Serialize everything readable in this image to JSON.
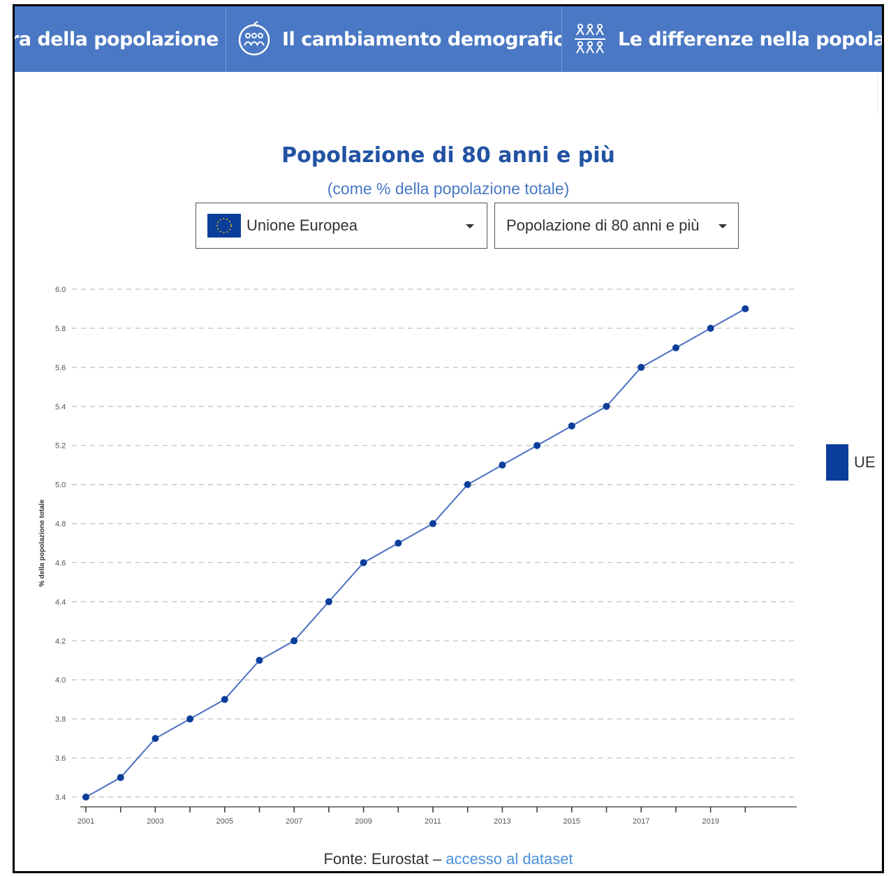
{
  "nav": {
    "items": [
      {
        "label": "ura della popolazione",
        "icon": ""
      },
      {
        "label": "Il cambiamento demografico",
        "icon": "people-cycle-icon"
      },
      {
        "label": "Le differenze nella popolazione",
        "icon": "people-group-icon"
      }
    ]
  },
  "controls": {
    "country": {
      "label": "Unione Europea",
      "icon": "eu-flag-icon"
    },
    "indicator": {
      "label": "Popolazione di 80 anni e più"
    }
  },
  "footer": {
    "source_text": "Fonte: Eurostat –",
    "link_text": "accesso al dataset"
  },
  "colors": {
    "nav_bg": "#4a78c4",
    "series": "#0b3d9b",
    "title": "#2253a3"
  },
  "chart_data": {
    "type": "line",
    "title": "Popolazione di 80 anni e più",
    "subtitle": "(come % della popolazione totale)",
    "ylabel": "% della popolazione totale",
    "xlabel": "",
    "ylim": [
      3.4,
      6.0
    ],
    "yticks": [
      "3.4",
      "3.6",
      "3.8",
      "4.0",
      "4.2",
      "4.4",
      "4.6",
      "4.8",
      "5.0",
      "5.2",
      "5.4",
      "5.6",
      "5.8",
      "6.0"
    ],
    "xticks": [
      2001,
      2003,
      2005,
      2007,
      2009,
      2011,
      2013,
      2015,
      2017,
      2019
    ],
    "grid": true,
    "legend_placement": "right",
    "x": [
      2001,
      2002,
      2003,
      2004,
      2005,
      2006,
      2007,
      2008,
      2009,
      2010,
      2011,
      2012,
      2013,
      2014,
      2015,
      2016,
      2017,
      2018,
      2019,
      2020
    ],
    "series": [
      {
        "name": "UE",
        "color": "#0b3d9b",
        "values": [
          3.4,
          3.5,
          3.7,
          3.8,
          3.9,
          4.1,
          4.2,
          4.4,
          4.6,
          4.7,
          4.8,
          5.0,
          5.1,
          5.2,
          5.3,
          5.4,
          5.6,
          5.7,
          5.8,
          5.9
        ]
      }
    ]
  }
}
